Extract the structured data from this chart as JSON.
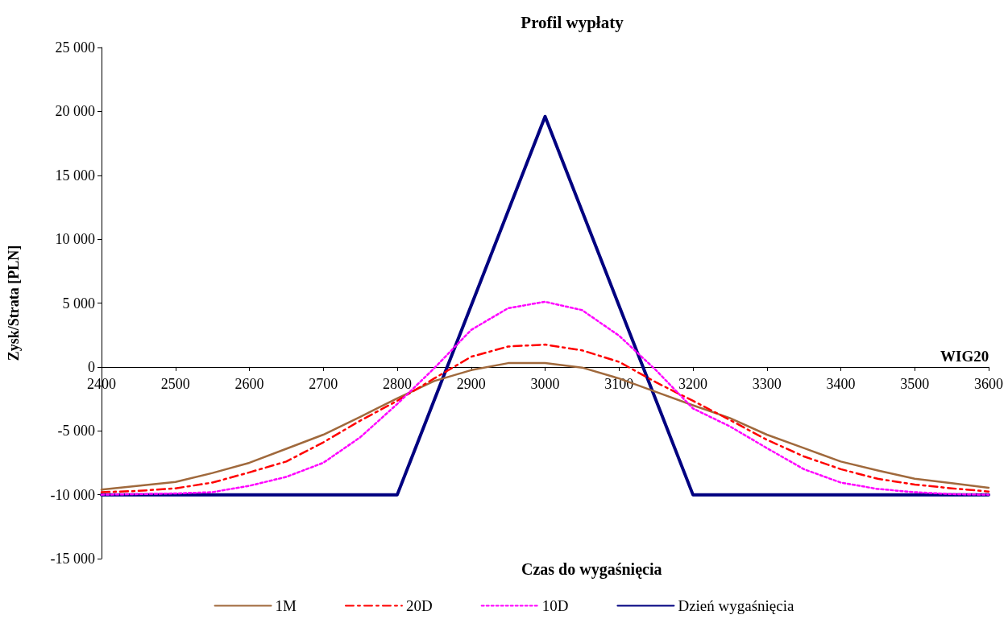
{
  "chart_data": {
    "type": "line",
    "title": "Profil wypłaty",
    "xlabel": "WIG20",
    "ylabel": "Zysk/Strata [PLN]",
    "legend_title": "Czas do wygaśnięcia",
    "x": [
      2400,
      2450,
      2500,
      2550,
      2600,
      2650,
      2700,
      2750,
      2800,
      2850,
      2900,
      2950,
      3000,
      3050,
      3100,
      3150,
      3200,
      3250,
      3300,
      3350,
      3400,
      3450,
      3500,
      3550,
      3600
    ],
    "series": [
      {
        "name": "1M",
        "color": "#a0693c",
        "line_style": "solid",
        "values": [
          -9600,
          -9300,
          -9000,
          -8300,
          -7500,
          -6400,
          -5300,
          -3900,
          -2450,
          -1100,
          -250,
          300,
          300,
          -50,
          -900,
          -1950,
          -3000,
          -4000,
          -5300,
          -6350,
          -7400,
          -8100,
          -8750,
          -9100,
          -9450
        ]
      },
      {
        "name": "20D",
        "color": "#ff0000",
        "line_style": "dashed",
        "values": [
          -9800,
          -9700,
          -9500,
          -9050,
          -8250,
          -7400,
          -5900,
          -4200,
          -2650,
          -900,
          800,
          1600,
          1750,
          1300,
          400,
          -1200,
          -2650,
          -4150,
          -5700,
          -7000,
          -8000,
          -8750,
          -9200,
          -9500,
          -9750
        ]
      },
      {
        "name": "10D",
        "color": "#ff00ff",
        "line_style": "dotted",
        "values": [
          -10000,
          -9950,
          -9900,
          -9800,
          -9300,
          -8600,
          -7500,
          -5500,
          -2900,
          -100,
          2900,
          4600,
          5100,
          4450,
          2450,
          -250,
          -3250,
          -4650,
          -6350,
          -8000,
          -9050,
          -9550,
          -9800,
          -9950,
          -10000
        ]
      },
      {
        "name": "Dzień wygaśnięcia",
        "color": "#000080",
        "line_style": "solid",
        "x": [
          2400,
          2800,
          3000,
          3200,
          3600
        ],
        "values": [
          -10000,
          -10000,
          19600,
          -10000,
          -10000
        ]
      }
    ],
    "xlim": [
      2400,
      3600
    ],
    "xticks": [
      2400,
      2500,
      2600,
      2700,
      2800,
      2900,
      3000,
      3100,
      3200,
      3300,
      3400,
      3500,
      3600
    ],
    "ylim": [
      -15000,
      25000
    ],
    "yticks": [
      {
        "value": -15000,
        "label": "-15 000"
      },
      {
        "value": -10000,
        "label": "-10 000"
      },
      {
        "value": -5000,
        "label": "-5 000"
      },
      {
        "value": 0,
        "label": "0"
      },
      {
        "value": 5000,
        "label": "5 000"
      },
      {
        "value": 10000,
        "label": "10 000"
      },
      {
        "value": 15000,
        "label": "15 000"
      },
      {
        "value": 20000,
        "label": "20 000"
      },
      {
        "value": 25000,
        "label": "25 000"
      }
    ],
    "grid": false,
    "legend": "bottom",
    "marker": "none"
  }
}
